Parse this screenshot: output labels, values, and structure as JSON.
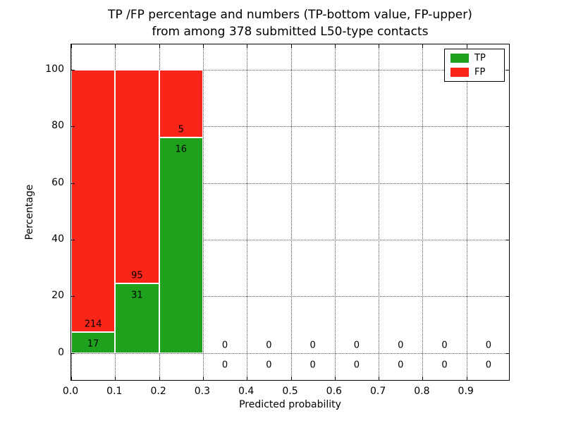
{
  "chart_data": {
    "type": "bar",
    "stacked": true,
    "title": [
      "TP /FP percentage and numbers (TP-bottom value, FP-upper)",
      "from among 378 submitted L50-type contacts"
    ],
    "xlabel": "Predicted probability",
    "ylabel": "Percentage",
    "xlim": [
      0.0,
      1.0
    ],
    "ylim": [
      -10,
      109
    ],
    "grid": "dotted",
    "legend_position": "upper right",
    "total_contacts": 378,
    "series": [
      {
        "name": "TP",
        "color": "#1ea21e"
      },
      {
        "name": "FP",
        "color": "#fa2519"
      }
    ],
    "xticks": [
      {
        "v": 0.0,
        "label": "0.0"
      },
      {
        "v": 0.1,
        "label": "0.1"
      },
      {
        "v": 0.2,
        "label": "0.2"
      },
      {
        "v": 0.3,
        "label": "0.3"
      },
      {
        "v": 0.4,
        "label": "0.4"
      },
      {
        "v": 0.5,
        "label": "0.5"
      },
      {
        "v": 0.6,
        "label": "0.6"
      },
      {
        "v": 0.7,
        "label": "0.7"
      },
      {
        "v": 0.8,
        "label": "0.8"
      },
      {
        "v": 0.9,
        "label": "0.9"
      }
    ],
    "yticks": [
      {
        "v": 0,
        "label": "0"
      },
      {
        "v": 20,
        "label": "20"
      },
      {
        "v": 40,
        "label": "40"
      },
      {
        "v": 60,
        "label": "60"
      },
      {
        "v": 80,
        "label": "80"
      },
      {
        "v": 100,
        "label": "100"
      }
    ],
    "bins": [
      {
        "x0": 0.0,
        "x1": 0.1,
        "tp_count": 17,
        "fp_count": 214,
        "tp_pct": 7.4,
        "fp_pct": 92.6
      },
      {
        "x0": 0.1,
        "x1": 0.2,
        "tp_count": 31,
        "fp_count": 95,
        "tp_pct": 24.6,
        "fp_pct": 75.4
      },
      {
        "x0": 0.2,
        "x1": 0.3,
        "tp_count": 16,
        "fp_count": 5,
        "tp_pct": 76.2,
        "fp_pct": 23.8
      },
      {
        "x0": 0.3,
        "x1": 0.4,
        "tp_count": 0,
        "fp_count": 0,
        "tp_pct": 0,
        "fp_pct": 0
      },
      {
        "x0": 0.4,
        "x1": 0.5,
        "tp_count": 0,
        "fp_count": 0,
        "tp_pct": 0,
        "fp_pct": 0
      },
      {
        "x0": 0.5,
        "x1": 0.6,
        "tp_count": 0,
        "fp_count": 0,
        "tp_pct": 0,
        "fp_pct": 0
      },
      {
        "x0": 0.6,
        "x1": 0.7,
        "tp_count": 0,
        "fp_count": 0,
        "tp_pct": 0,
        "fp_pct": 0
      },
      {
        "x0": 0.7,
        "x1": 0.8,
        "tp_count": 0,
        "fp_count": 0,
        "tp_pct": 0,
        "fp_pct": 0
      },
      {
        "x0": 0.8,
        "x1": 0.9,
        "tp_count": 0,
        "fp_count": 0,
        "tp_pct": 0,
        "fp_pct": 0
      },
      {
        "x0": 0.9,
        "x1": 1.0,
        "tp_count": 0,
        "fp_count": 0,
        "tp_pct": 0,
        "fp_pct": 0
      }
    ]
  }
}
